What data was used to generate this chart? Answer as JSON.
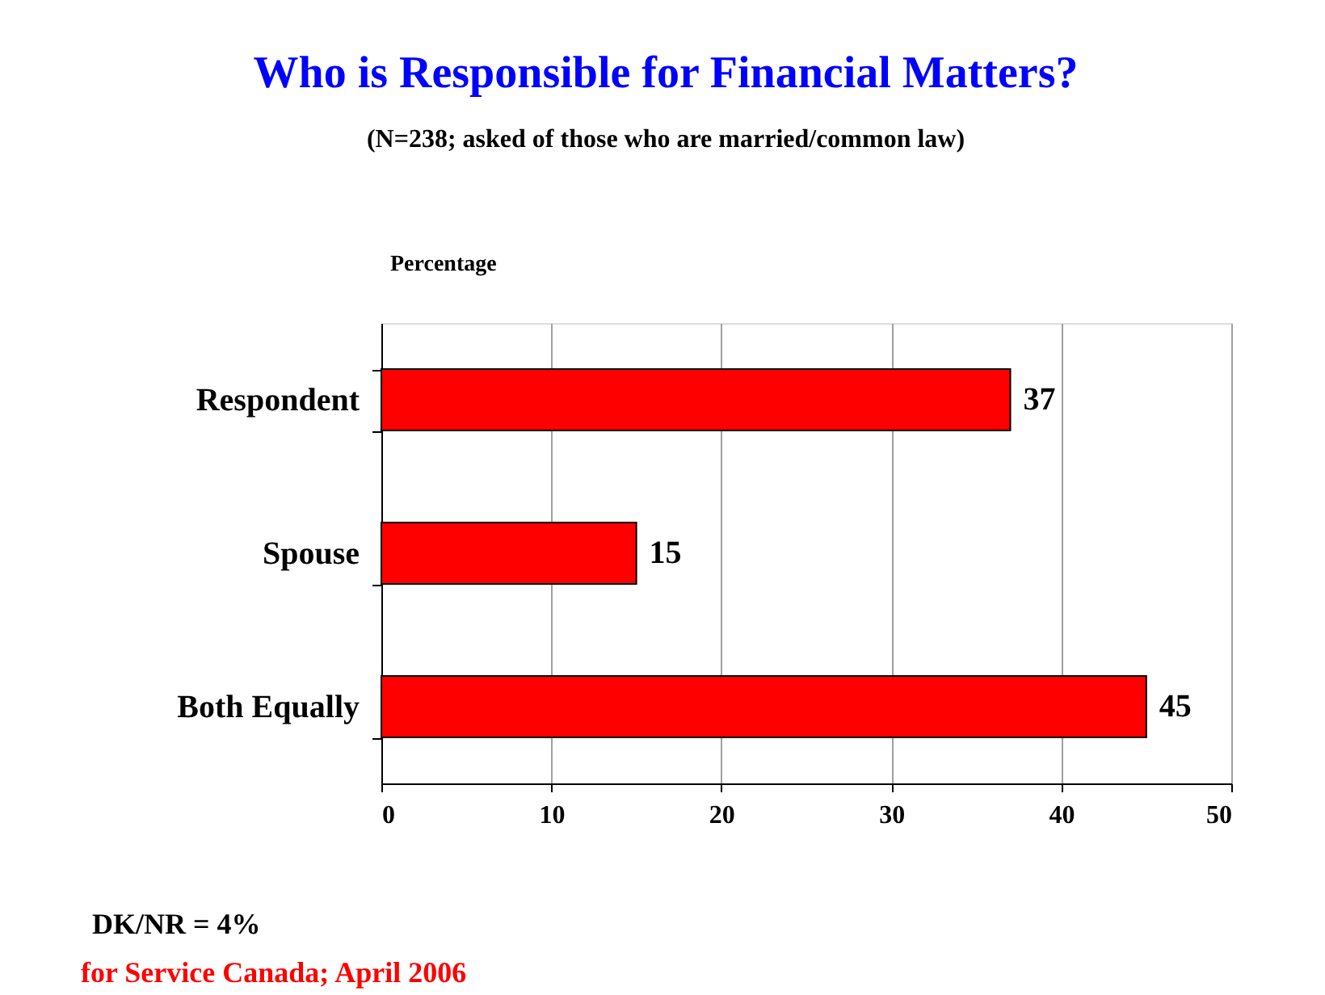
{
  "chart_data": {
    "type": "bar",
    "orientation": "horizontal",
    "title": "Who is Responsible for Financial Matters?",
    "subtitle": "(N=238; asked of those who are married/common law)",
    "xlabel": "Percentage",
    "categories": [
      "Respondent",
      "Spouse",
      "Both Equally"
    ],
    "values": [
      37,
      15,
      45
    ],
    "color": "#ff0000",
    "xlim": [
      0,
      50
    ],
    "xticks": [
      0,
      10,
      20,
      30,
      40,
      50
    ],
    "grid": "x",
    "data_labels": true,
    "annotations": [
      "DK/NR = 4%",
      "for Service Canada; April 2006"
    ]
  }
}
